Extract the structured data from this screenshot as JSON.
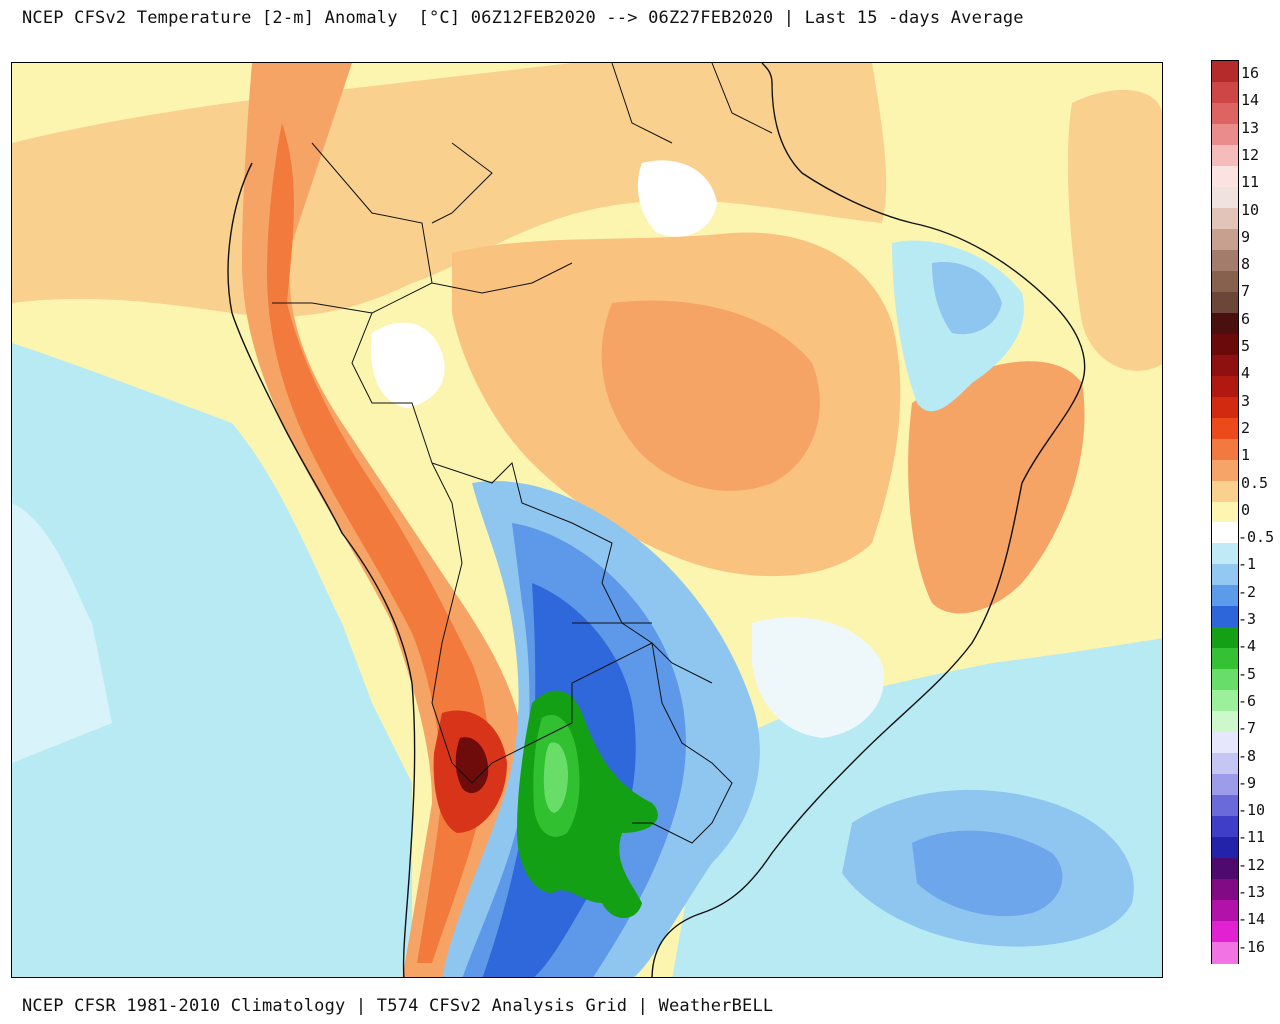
{
  "header": {
    "title": "NCEP CFSv2 Temperature [2-m] Anomaly  [°C] 06Z12FEB2020 --> 06Z27FEB2020 | Last 15 -days Average"
  },
  "footer": {
    "credit": "NCEP CFSR 1981-2010 Climatology | T574 CFSv2 Analysis Grid | WeatherBELL"
  },
  "colorbar": {
    "labels": [
      "16",
      "14",
      "13",
      "12",
      "11",
      "10",
      "9",
      "8",
      "7",
      "6",
      "5",
      "4",
      "3",
      "2",
      "1",
      "0.5",
      "0",
      "-0.5",
      "-1",
      "-2",
      "-3",
      "-4",
      "-5",
      "-6",
      "-7",
      "-8",
      "-9",
      "-10",
      "-11",
      "-12",
      "-13",
      "-14",
      "-16"
    ],
    "colors": [
      "#b22222",
      "#d23a3a",
      "#e06060",
      "#f08a8a",
      "#f6b8b8",
      "#fbe0de",
      "#f6ece8",
      "#e8c9bd",
      "#c9a392",
      "#a88170",
      "#8a6452",
      "#6e4a3c",
      "#3e0a0a",
      "#6e0808",
      "#961010",
      "#b81a10",
      "#d82a10",
      "#f04a1a",
      "#f47a3a",
      "#f6a262",
      "#f8c886",
      "#fdf6b0",
      "#ffffff",
      "#b8e8f4",
      "#8cc4f0",
      "#5a96e8",
      "#2a62d8",
      "#14a014",
      "#30c030",
      "#62dc62",
      "#94ee94",
      "#c8f8c8",
      "#e8e8fc",
      "#c4c4f4",
      "#9898e8",
      "#6464d8",
      "#3a3ac8",
      "#2020a8",
      "#4a0a6a",
      "#800a80",
      "#b010a8",
      "#e020d0",
      "#f070e0"
    ],
    "cb_colors": [
      "#b52a2a",
      "#cf4646",
      "#de6464",
      "#ea8c8c",
      "#f6bcbc",
      "#fce2e0",
      "#f0e2de",
      "#e2c4b8",
      "#c8a090",
      "#a47c6c",
      "#88604e",
      "#6c4638",
      "#4a1010",
      "#6a0a0a",
      "#8e1010",
      "#b01810",
      "#d22a10",
      "#ec4a1a",
      "#f27a40",
      "#f6a468",
      "#fad08e",
      "#fcf6b2",
      "#ffffff",
      "#bfeaf6",
      "#92c8f2",
      "#5c9aea",
      "#2c66da",
      "#14a014",
      "#34c234",
      "#68de68",
      "#9cf09c",
      "#ccf8cc",
      "#e6e6fc",
      "#c6c6f4",
      "#9c9cea",
      "#6a6ada",
      "#3e3ec8",
      "#2222aa",
      "#4e0a6e",
      "#820a84",
      "#b212aa",
      "#e222d2",
      "#f274e2"
    ]
  },
  "map": {
    "region": "South America",
    "land_label": "",
    "colors": {
      "ocean_neg_light": "#b8eaf4",
      "ocean_neg_mid": "#8ec6f0",
      "ocean_neg_deep": "#5e98e8",
      "land_warm_pale": "#fbf5b0",
      "land_warm_light": "#f9d08e",
      "land_warm_mid": "#f6a466",
      "land_warm_strong": "#f27a3c",
      "land_warm_hot": "#d8341a",
      "land_warm_peak": "#6e0c0c",
      "cold_blue": "#2e68da",
      "cold_mid": "#5a96e8",
      "green_light": "#68de68",
      "green_mid": "#30c030",
      "green_deep": "#14a014",
      "white": "#ffffff",
      "border": "#111111",
      "lake": "#999999"
    }
  }
}
